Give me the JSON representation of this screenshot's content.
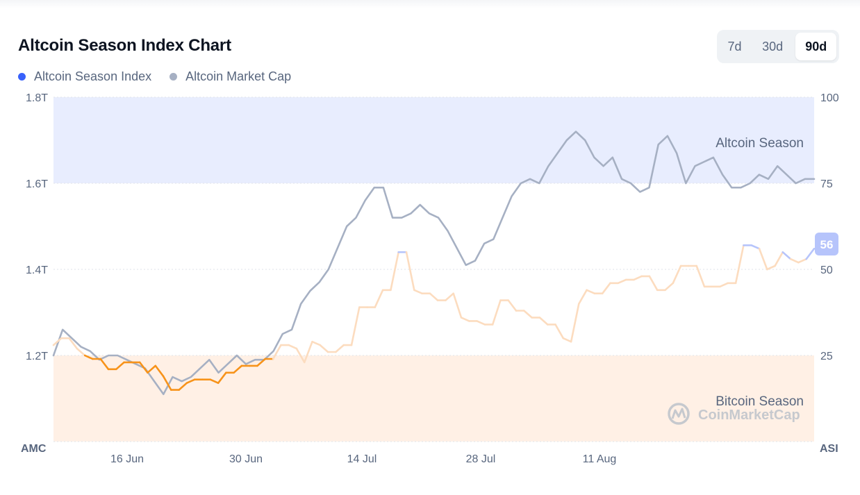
{
  "header": {
    "title": "Altcoin Season Index Chart"
  },
  "legend": [
    {
      "label": "Altcoin Season Index",
      "color": "#3861fb"
    },
    {
      "label": "Altcoin Market Cap",
      "color": "#a6b0c3"
    }
  ],
  "range_selector": {
    "options": [
      "7d",
      "30d",
      "90d"
    ],
    "selected": "90d"
  },
  "watermark": "CoinMarketCap",
  "chart_data": {
    "type": "line",
    "left_axis": {
      "name": "AMC",
      "ticks": [
        "1.2T",
        "1.4T",
        "1.6T",
        "1.8T"
      ],
      "range_trillions": [
        1.0,
        1.8
      ]
    },
    "right_axis": {
      "name": "ASI",
      "ticks": [
        "25",
        "50",
        "75",
        "100"
      ],
      "range": [
        0,
        100
      ]
    },
    "x_ticks": [
      "16 Jun",
      "30 Jun",
      "14 Jul",
      "28 Jul",
      "11 Aug"
    ],
    "zones": [
      {
        "label": "Altcoin Season",
        "from": 75,
        "to": 100,
        "color": "#e8edfe"
      },
      {
        "label": "Bitcoin Season",
        "from": 0,
        "to": 25,
        "color": "#fff0e5"
      }
    ],
    "current_index": "56",
    "colors": {
      "index_bitcoin": "#f7931a",
      "index_neutral": "#fcdcbf",
      "index_altcoin": "#b6c4fb",
      "market_cap": "#a6b0c3"
    },
    "series": [
      {
        "name": "Altcoin Season Index",
        "axis": "right",
        "values": [
          28,
          30,
          30,
          27,
          25,
          24,
          24,
          21,
          21,
          23,
          23,
          23,
          20,
          22,
          19,
          15,
          15,
          17,
          18,
          18,
          18,
          17,
          20,
          20,
          22,
          22,
          22,
          24,
          24,
          28,
          28,
          27,
          23,
          29,
          28,
          26,
          26,
          28,
          28,
          39,
          39,
          39,
          44,
          44,
          55,
          55,
          44,
          43,
          43,
          41,
          41,
          43,
          36,
          35,
          35,
          34,
          34,
          41,
          41,
          38,
          38,
          36,
          36,
          34,
          34,
          30,
          29,
          40,
          44,
          43,
          43,
          46,
          46,
          47,
          47,
          48,
          48,
          44,
          44,
          46,
          51,
          51,
          51,
          45,
          45,
          45,
          46,
          46,
          57,
          57,
          56,
          50,
          51,
          55,
          53,
          52,
          53,
          56
        ]
      },
      {
        "name": "Altcoin Market Cap",
        "axis": "left",
        "unit": "T",
        "values": [
          1.2,
          1.26,
          1.24,
          1.22,
          1.21,
          1.19,
          1.2,
          1.2,
          1.19,
          1.18,
          1.17,
          1.14,
          1.11,
          1.15,
          1.14,
          1.15,
          1.17,
          1.19,
          1.16,
          1.18,
          1.2,
          1.18,
          1.19,
          1.19,
          1.21,
          1.25,
          1.26,
          1.32,
          1.35,
          1.37,
          1.4,
          1.45,
          1.5,
          1.52,
          1.56,
          1.59,
          1.59,
          1.52,
          1.52,
          1.53,
          1.55,
          1.53,
          1.52,
          1.49,
          1.45,
          1.41,
          1.42,
          1.46,
          1.47,
          1.52,
          1.57,
          1.6,
          1.61,
          1.6,
          1.64,
          1.67,
          1.7,
          1.72,
          1.7,
          1.66,
          1.64,
          1.66,
          1.61,
          1.6,
          1.58,
          1.59,
          1.69,
          1.71,
          1.67,
          1.6,
          1.64,
          1.65,
          1.66,
          1.62,
          1.59,
          1.59,
          1.6,
          1.62,
          1.61,
          1.64,
          1.62,
          1.6,
          1.61,
          1.61
        ]
      }
    ]
  }
}
